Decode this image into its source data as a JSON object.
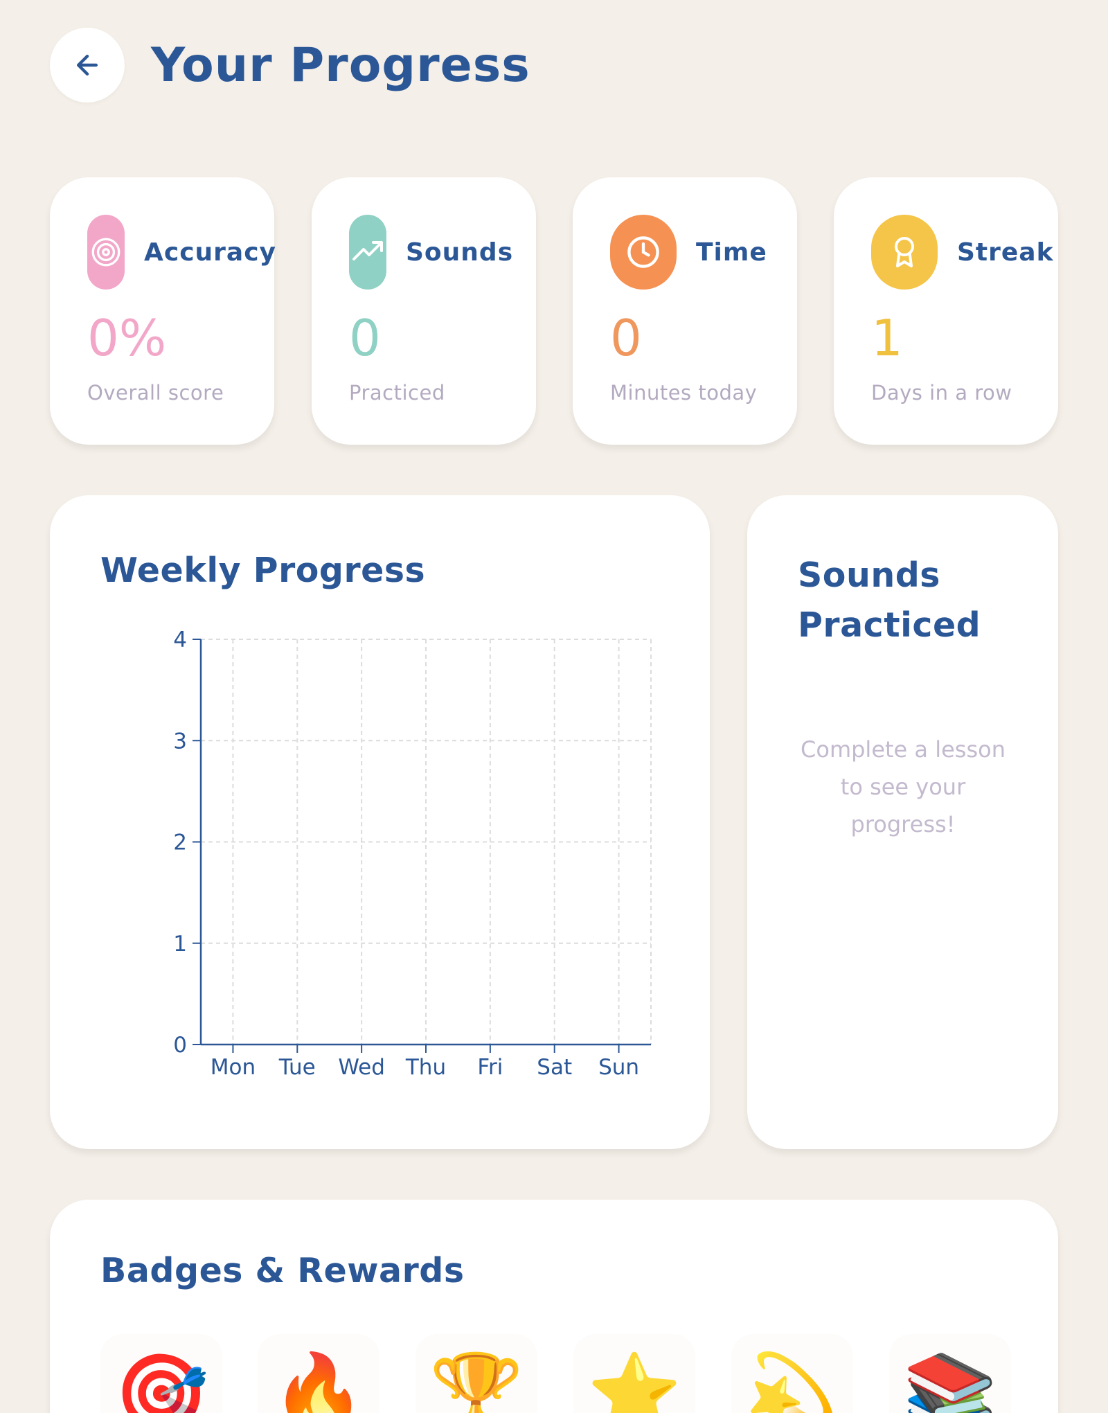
{
  "header": {
    "title": "Your Progress",
    "back_icon": "arrow-left-icon"
  },
  "stats": [
    {
      "label": "Accuracy",
      "value": "0%",
      "sub": "Overall score",
      "icon": "target-icon",
      "color": "#f2a7c9",
      "value_color": "#f2a7c9"
    },
    {
      "label": "Sounds",
      "value": "0",
      "sub": "Practiced",
      "icon": "trending-up-icon",
      "color": "#8fd1c4",
      "value_color": "#8fd1c4"
    },
    {
      "label": "Time",
      "value": "0",
      "sub": "Minutes today",
      "icon": "clock-icon",
      "color": "#f59152",
      "value_color": "#f0975e"
    },
    {
      "label": "Streak",
      "value": "1",
      "sub": "Days in a row",
      "icon": "award-icon",
      "color": "#f5c54a",
      "value_color": "#f0c03f"
    }
  ],
  "weekly": {
    "title": "Weekly Progress"
  },
  "chart_data": {
    "type": "line",
    "categories": [
      "Mon",
      "Tue",
      "Wed",
      "Thu",
      "Fri",
      "Sat",
      "Sun"
    ],
    "series": [],
    "title": "Weekly Progress",
    "xlabel": "",
    "ylabel": "",
    "ylim": [
      0,
      4
    ],
    "yticks": [
      "0",
      "1",
      "2",
      "3",
      "4"
    ],
    "grid": true
  },
  "sounds_practiced": {
    "title_line1": "Sounds",
    "title_line2": "Practiced",
    "empty_line1": "Complete a lesson",
    "empty_line2": "to see your",
    "empty_line3": "progress!"
  },
  "badges": {
    "title": "Badges & Rewards",
    "items": [
      {
        "icon": "dart-target-icon",
        "glyph": "🎯"
      },
      {
        "icon": "fire-icon",
        "glyph": "🔥"
      },
      {
        "icon": "trophy-icon",
        "glyph": "🏆"
      },
      {
        "icon": "star-icon",
        "glyph": "⭐"
      },
      {
        "icon": "shooting-star-icon",
        "glyph": "💫"
      },
      {
        "icon": "books-icon",
        "glyph": "📚"
      }
    ]
  },
  "colors": {
    "background": "#f4efe8",
    "primary": "#2b5796",
    "muted": "#b3aac0"
  }
}
